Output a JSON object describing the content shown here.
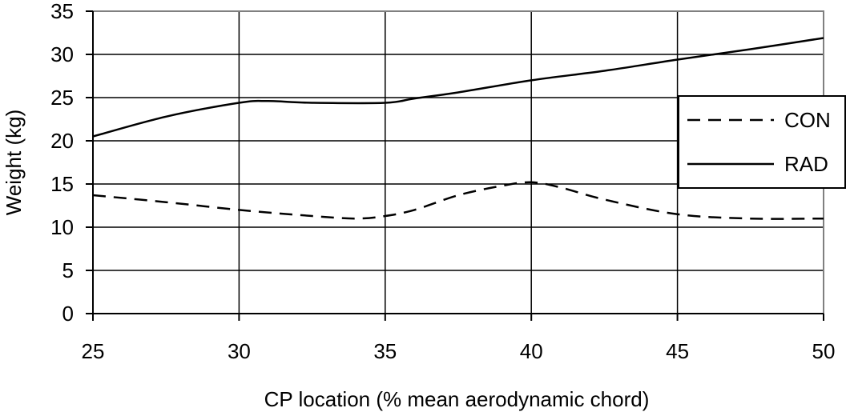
{
  "chart_data": {
    "type": "line",
    "title": "",
    "xlabel": "CP location (% mean aerodynamic chord)",
    "ylabel": "Weight (kg)",
    "xlim": [
      25,
      50
    ],
    "ylim": [
      0,
      35
    ],
    "xticks": [
      25,
      30,
      35,
      40,
      45,
      50
    ],
    "yticks": [
      0,
      5,
      10,
      15,
      20,
      25,
      30,
      35
    ],
    "grid": true,
    "legend_position": "right",
    "series": [
      {
        "name": "CON",
        "style": "dashed",
        "color": "#000000",
        "x": [
          25,
          27.5,
          30,
          32.5,
          34,
          35,
          36,
          37.5,
          39,
          40,
          41,
          42.5,
          45,
          47.5,
          50
        ],
        "y": [
          13.7,
          12.9,
          12.0,
          11.3,
          11.0,
          11.3,
          12.0,
          13.7,
          14.8,
          15.2,
          14.6,
          13.2,
          11.5,
          11.0,
          11.0
        ]
      },
      {
        "name": "RAD",
        "style": "solid",
        "color": "#000000",
        "x": [
          25,
          27.5,
          30,
          31,
          32.5,
          35,
          36,
          37.5,
          40,
          42.5,
          45,
          47.5,
          50
        ],
        "y": [
          20.5,
          22.8,
          24.4,
          24.6,
          24.4,
          24.4,
          24.9,
          25.6,
          27.0,
          28.1,
          29.4,
          30.6,
          31.9
        ]
      }
    ]
  }
}
